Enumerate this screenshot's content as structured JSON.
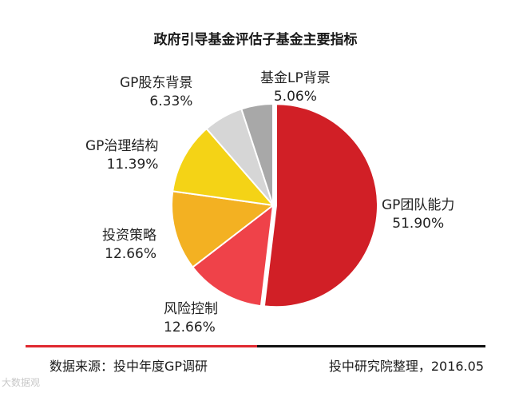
{
  "chart_data": {
    "type": "pie",
    "title": "政府引导基金评估子基金主要指标",
    "slices": [
      {
        "label": "GP团队能力",
        "value": 51.9,
        "display": "51.90%",
        "color": "#d11f26"
      },
      {
        "label": "风险控制",
        "value": 12.66,
        "display": "12.66%",
        "color": "#ef4249"
      },
      {
        "label": "投资策略",
        "value": 12.66,
        "display": "12.66%",
        "color": "#f3b122"
      },
      {
        "label": "GP治理结构",
        "value": 11.39,
        "display": "11.39%",
        "color": "#f4d316"
      },
      {
        "label": "GP股东背景",
        "value": 6.33,
        "display": "6.33%",
        "color": "#d6d6d6"
      },
      {
        "label": "基金LP背景",
        "value": 5.06,
        "display": "5.06%",
        "color": "#a8a8a8"
      }
    ]
  },
  "footer": {
    "source": "数据来源：投中年度GP调研",
    "credit": "投中研究院整理，2016.05",
    "rule_left_color": "#e0282f",
    "rule_right_color": "#111111"
  },
  "watermark": "大数据观"
}
